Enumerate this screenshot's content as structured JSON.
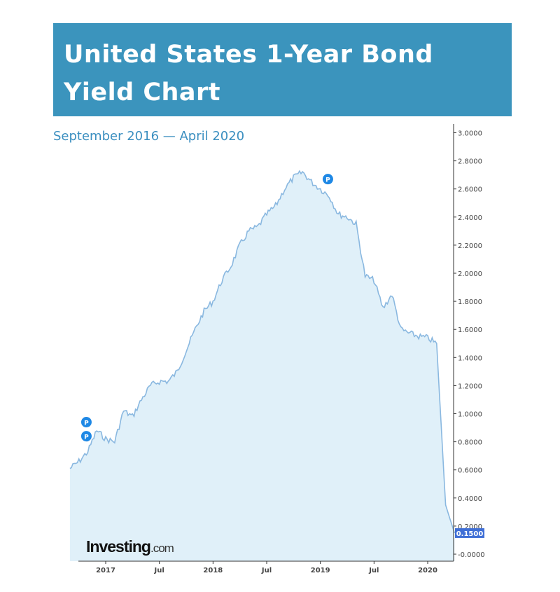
{
  "title": "United States 1-Year Bond Yield  Chart",
  "subtitle": "September 2016 — April 2020",
  "watermark": {
    "brand": "Investing",
    "suffix": ".com"
  },
  "colors": {
    "banner": "#3b94bd",
    "line": "#8ab8e0",
    "fill": "#e0f0f9",
    "marker": "#1e88e5",
    "current_badge": "#3f6fd6"
  },
  "chart_data": {
    "type": "area",
    "ylim": [
      0,
      3.0
    ],
    "yticks": [
      "3.0000",
      "2.8000",
      "2.6000",
      "2.4000",
      "2.2000",
      "2.0000",
      "1.8000",
      "1.6000",
      "1.4000",
      "1.2000",
      "1.0000",
      "0.8000",
      "0.6000",
      "0.4000",
      "0.2000",
      "-0.0000"
    ],
    "ytick_values": [
      3.0,
      2.8,
      2.6,
      2.4,
      2.2,
      2.0,
      1.8,
      1.6,
      1.4,
      1.2,
      1.0,
      0.8,
      0.6,
      0.4,
      0.2,
      0.0
    ],
    "xticks": [
      {
        "label": "2017",
        "date": "2017-01"
      },
      {
        "label": "Jul",
        "date": "2017-07"
      },
      {
        "label": "2018",
        "date": "2018-01"
      },
      {
        "label": "Jul",
        "date": "2018-07"
      },
      {
        "label": "2019",
        "date": "2019-01"
      },
      {
        "label": "Jul",
        "date": "2019-07"
      },
      {
        "label": "2020",
        "date": "2020-01"
      }
    ],
    "x_start": "2016-09",
    "x_end": "2020-04",
    "current_value": "0.1500",
    "series": [
      {
        "points": [
          [
            "2016-09",
            0.61
          ],
          [
            "2016-10",
            0.66
          ],
          [
            "2016-11",
            0.73
          ],
          [
            "2016-12",
            0.88
          ],
          [
            "2017-01",
            0.82
          ],
          [
            "2017-02",
            0.8
          ],
          [
            "2017-03",
            1.02
          ],
          [
            "2017-04",
            0.98
          ],
          [
            "2017-05",
            1.1
          ],
          [
            "2017-06",
            1.2
          ],
          [
            "2017-07",
            1.23
          ],
          [
            "2017-08",
            1.23
          ],
          [
            "2017-09",
            1.3
          ],
          [
            "2017-10",
            1.45
          ],
          [
            "2017-11",
            1.6
          ],
          [
            "2017-12",
            1.73
          ],
          [
            "2018-01",
            1.8
          ],
          [
            "2018-02",
            1.95
          ],
          [
            "2018-03",
            2.05
          ],
          [
            "2018-04",
            2.2
          ],
          [
            "2018-05",
            2.3
          ],
          [
            "2018-06",
            2.33
          ],
          [
            "2018-07",
            2.42
          ],
          [
            "2018-08",
            2.48
          ],
          [
            "2018-09",
            2.6
          ],
          [
            "2018-10",
            2.68
          ],
          [
            "2018-11",
            2.72
          ],
          [
            "2018-12",
            2.65
          ],
          [
            "2019-01",
            2.6
          ],
          [
            "2019-02",
            2.55
          ],
          [
            "2019-03",
            2.42
          ],
          [
            "2019-04",
            2.4
          ],
          [
            "2019-05",
            2.35
          ],
          [
            "2019-06",
            1.98
          ],
          [
            "2019-07",
            1.95
          ],
          [
            "2019-08",
            1.75
          ],
          [
            "2019-09",
            1.85
          ],
          [
            "2019-10",
            1.6
          ],
          [
            "2019-11",
            1.57
          ],
          [
            "2019-12",
            1.55
          ],
          [
            "2020-01",
            1.54
          ],
          [
            "2020-02",
            1.5
          ],
          [
            "2020-03",
            0.35
          ],
          [
            "2020-04",
            0.15
          ]
        ]
      }
    ],
    "markers": [
      {
        "date": "2016-11",
        "value": 0.9,
        "label": "P"
      },
      {
        "date": "2016-11",
        "value": 0.8,
        "label": "P"
      },
      {
        "date": "2019-02",
        "value": 2.63,
        "label": "P"
      }
    ]
  }
}
